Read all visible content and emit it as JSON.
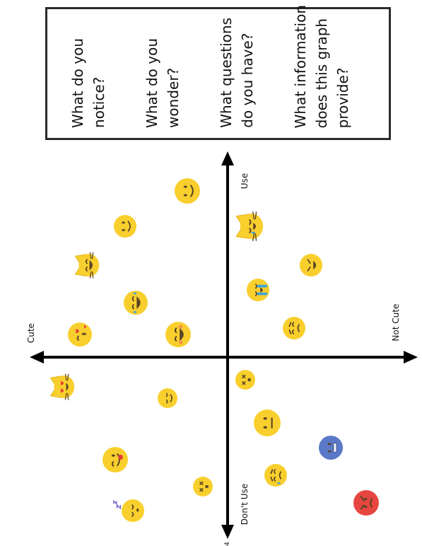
{
  "prompts": [
    {
      "id": "notice",
      "lines": [
        "What do you",
        "notice?"
      ]
    },
    {
      "id": "wonder",
      "lines": [
        "What do you",
        "wonder?"
      ]
    },
    {
      "id": "questions",
      "lines": [
        "What questions",
        "do you have?"
      ]
    },
    {
      "id": "information",
      "lines": [
        "What information",
        "does this graph",
        "provide?"
      ]
    }
  ],
  "axes": {
    "top": "Use",
    "bottom": "Don't Use",
    "left": "Cute",
    "right": "Not Cute",
    "page_mark": "4"
  },
  "colors": {
    "face": "#f8cf2c",
    "face_outline": "#e1b21a",
    "feature": "#5b4326",
    "blue_face": "#5b78c8",
    "red_face": "#e6463f",
    "tear": "#3aa4e0",
    "heart": "#e93b3b"
  },
  "emojis": [
    {
      "name": "slightly-smiling-face-emoji",
      "kind": "smile",
      "color": "yellow"
    },
    {
      "name": "smiling-face-emoji",
      "kind": "smile",
      "color": "yellow"
    },
    {
      "name": "crying-cat-face-emoji",
      "kind": "cat-cry",
      "color": "yellow"
    },
    {
      "name": "grinning-cat-face-emoji",
      "kind": "cat-grin",
      "color": "yellow"
    },
    {
      "name": "tired-face-emoji",
      "kind": "tired",
      "color": "yellow"
    },
    {
      "name": "laughing-tears-face-emoji",
      "kind": "laugh-tears",
      "color": "yellow"
    },
    {
      "name": "loudly-crying-face-emoji",
      "kind": "loud-cry",
      "color": "yellow"
    },
    {
      "name": "kissing-heart-face-emoji",
      "kind": "kiss",
      "color": "yellow"
    },
    {
      "name": "grinning-squinting-face-emoji",
      "kind": "grin",
      "color": "yellow"
    },
    {
      "name": "frowning-face-emoji",
      "kind": "frown",
      "color": "yellow"
    },
    {
      "name": "heart-eyes-cat-emoji",
      "kind": "cat-hearts",
      "color": "yellow"
    },
    {
      "name": "dizzy-face-emoji",
      "kind": "dizzy",
      "color": "yellow"
    },
    {
      "name": "relieved-face-emoji",
      "kind": "relieved",
      "color": "yellow"
    },
    {
      "name": "neutral-face-emoji",
      "kind": "neutral",
      "color": "yellow"
    },
    {
      "name": "cold-face-emoji",
      "kind": "cold",
      "color": "blue"
    },
    {
      "name": "tongue-face-emoji",
      "kind": "tongue",
      "color": "yellow"
    },
    {
      "name": "astonished-face-emoji",
      "kind": "astonished",
      "color": "yellow"
    },
    {
      "name": "sweat-face-emoji",
      "kind": "sweat",
      "color": "yellow"
    },
    {
      "name": "sleeping-face-emoji",
      "kind": "sleep",
      "color": "yellow"
    },
    {
      "name": "angry-face-emoji",
      "kind": "angry",
      "color": "red"
    }
  ]
}
